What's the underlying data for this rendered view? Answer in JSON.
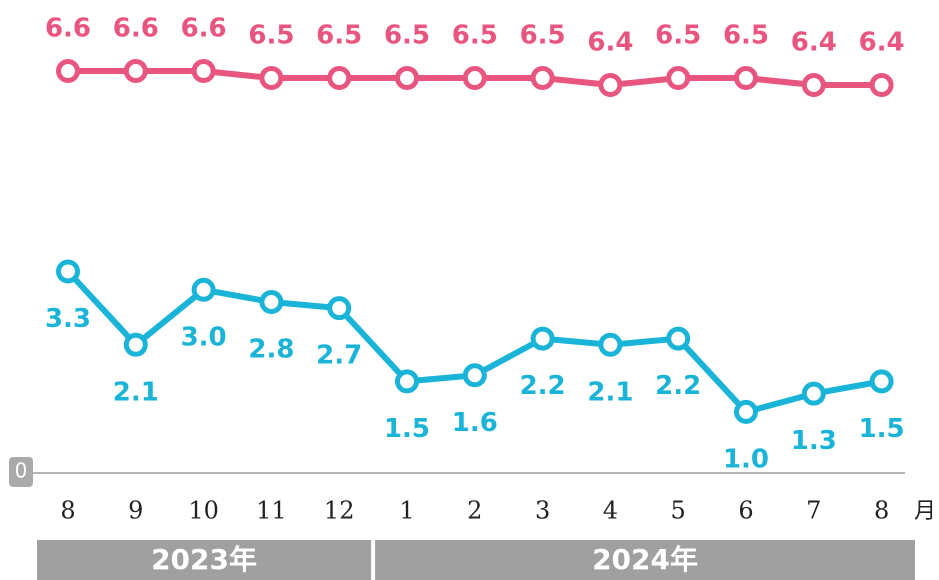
{
  "chart_data": {
    "type": "line",
    "categories": [
      "8",
      "9",
      "10",
      "11",
      "12",
      "1",
      "2",
      "3",
      "4",
      "5",
      "6",
      "7",
      "8"
    ],
    "x_unit": "月",
    "groups": [
      {
        "label": "2023年",
        "span": 5
      },
      {
        "label": "2024年",
        "span": 8
      }
    ],
    "series": [
      {
        "color": "#e8557f",
        "axis": "y2",
        "values": [
          6.6,
          6.6,
          6.6,
          6.5,
          6.5,
          6.5,
          6.5,
          6.5,
          6.4,
          6.5,
          6.5,
          6.4,
          6.4
        ],
        "value_labels": [
          "6.6",
          "6.6",
          "6.6",
          "6.5",
          "6.5",
          "6.5",
          "6.5",
          "6.5",
          "6.4",
          "6.5",
          "6.5",
          "6.4",
          "6.4"
        ]
      },
      {
        "color": "#1ab4d8",
        "values": [
          3.3,
          2.1,
          3.0,
          2.8,
          2.7,
          1.5,
          1.6,
          2.2,
          2.1,
          2.2,
          1.0,
          1.3,
          1.5
        ],
        "value_labels": [
          "3.3",
          "2.1",
          "3.0",
          "2.8",
          "2.7",
          "1.5",
          "1.6",
          "2.2",
          "2.1",
          "2.2",
          "1.0",
          "1.3",
          "1.5"
        ]
      }
    ],
    "ylim": [
      0,
      7.5
    ],
    "yticks": [
      0
    ],
    "y2lim": [
      0.86,
      7.4
    ]
  }
}
